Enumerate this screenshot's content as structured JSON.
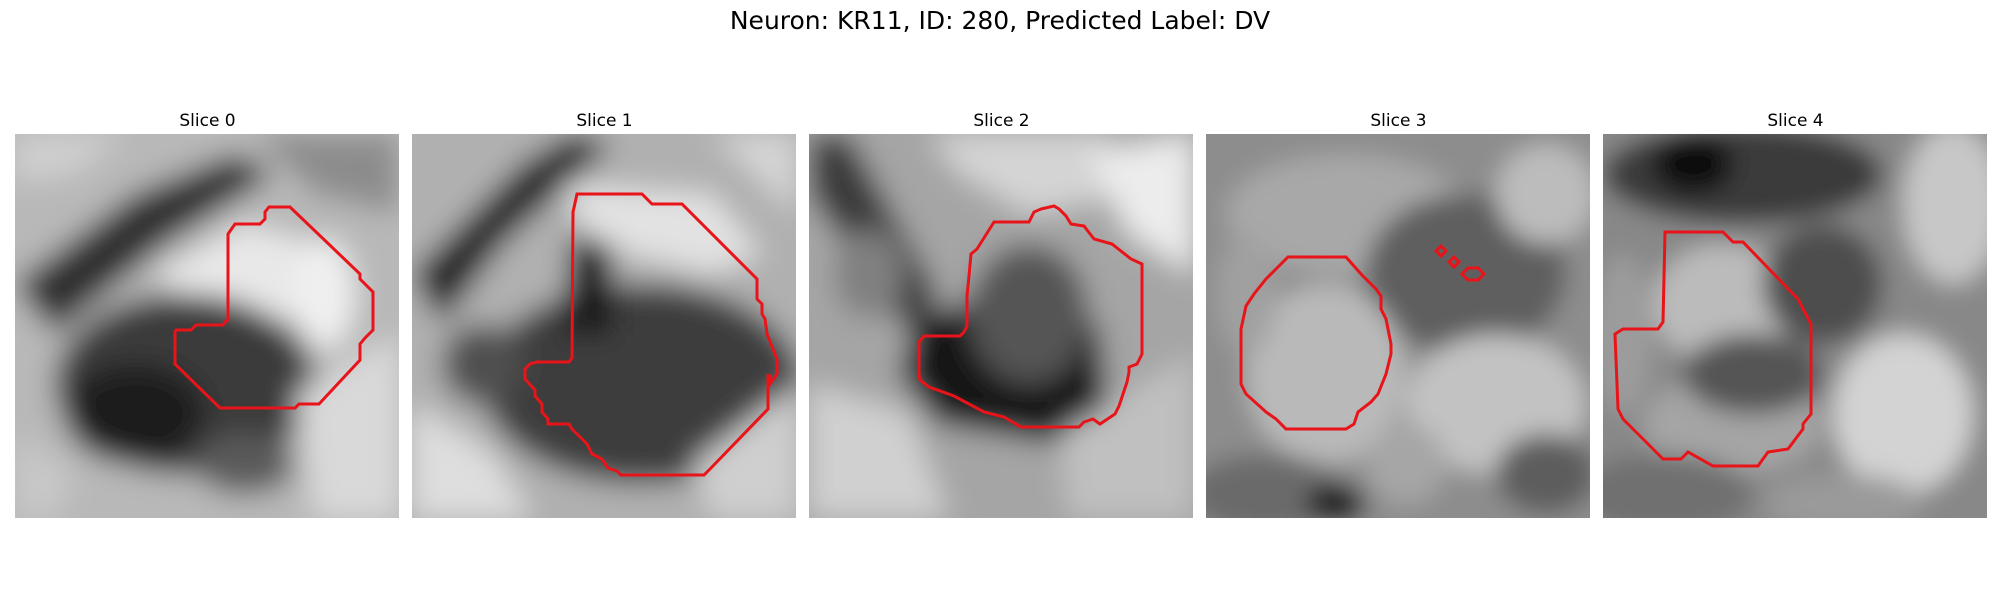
{
  "figure": {
    "title": "Neuron: KR11, ID: 280, Predicted Label: DV"
  },
  "colors": {
    "contour": "#e8141a",
    "background": "#ffffff"
  },
  "panels": [
    {
      "title": "Slice 0"
    },
    {
      "title": "Slice 1"
    },
    {
      "title": "Slice 2"
    },
    {
      "title": "Slice 3"
    },
    {
      "title": "Slice 4"
    }
  ]
}
